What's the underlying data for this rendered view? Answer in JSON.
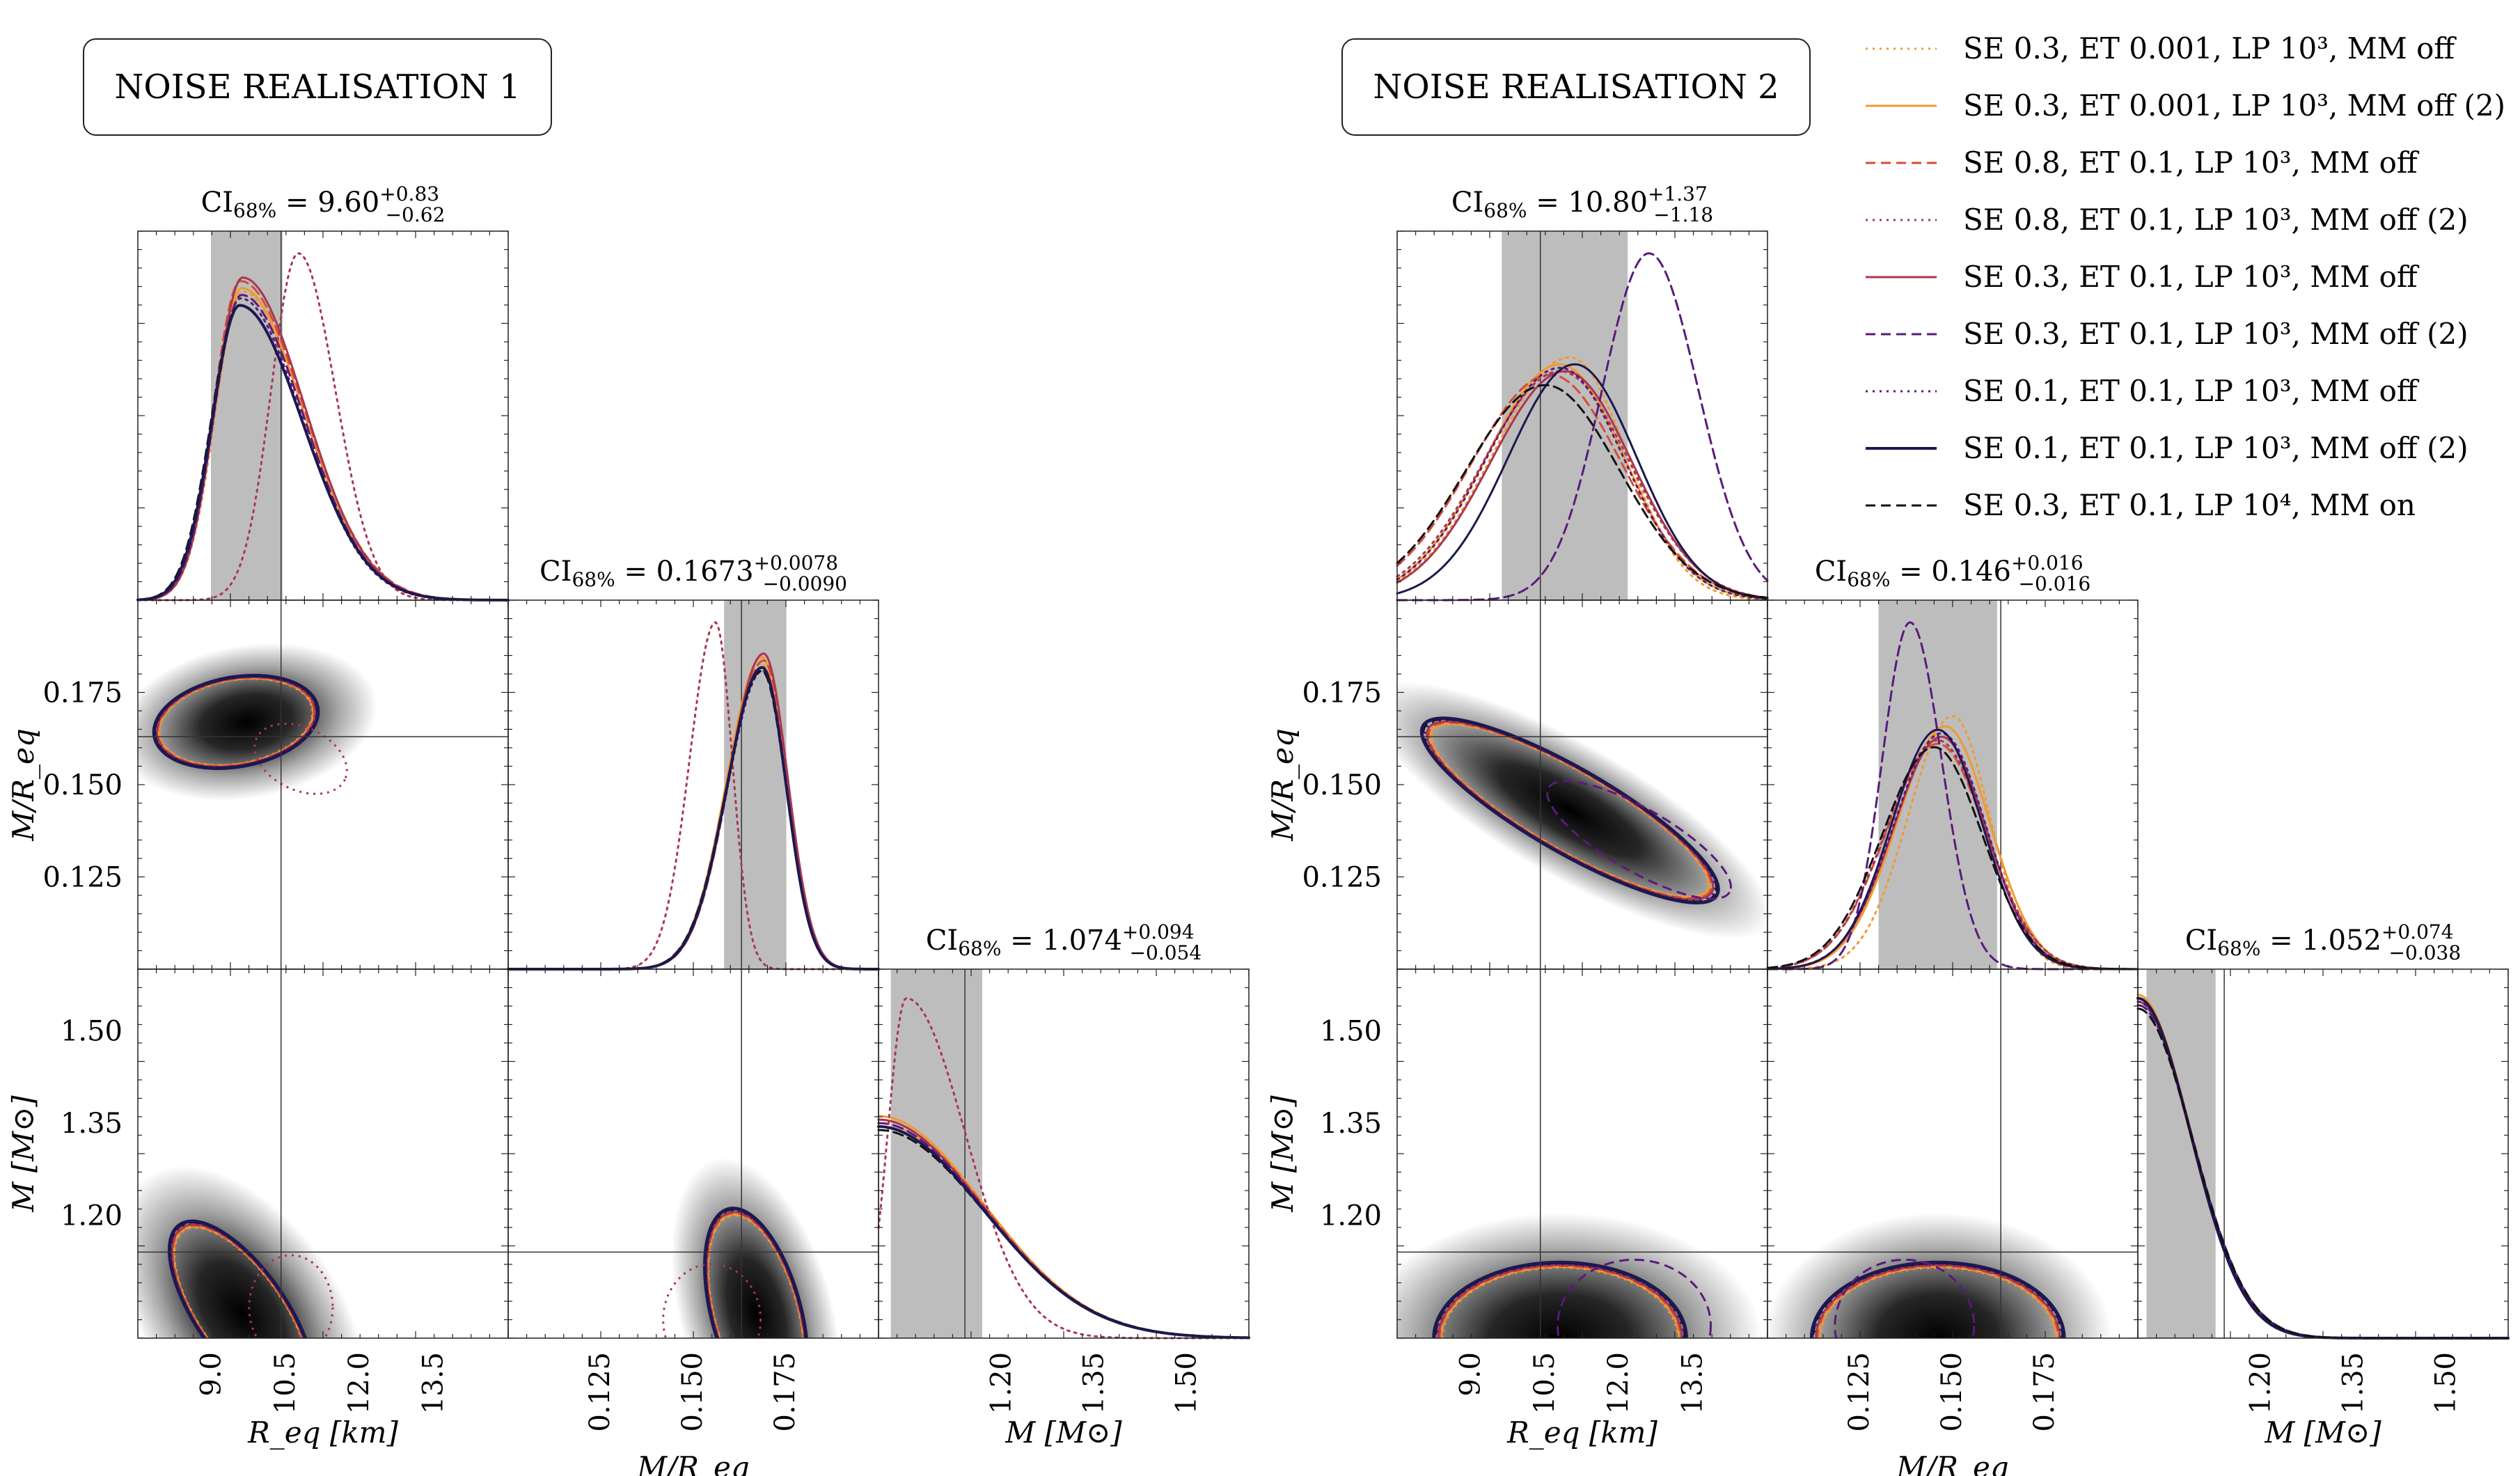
{
  "colors": {
    "orange": "#f2992e",
    "red": "#d64b3a",
    "crimson": "#a9374f",
    "purple": "#5a1a7c",
    "navy": "#1c1850",
    "black": "#111111",
    "band": "#bdbdbd"
  },
  "legend": [
    {
      "text": "SE 0.3, ET 0.001, LP 10³, MM off",
      "color": "orange",
      "dash": "dot"
    },
    {
      "text": "SE 0.3, ET 0.001, LP 10³, MM off (2)",
      "color": "orange",
      "dash": "solid"
    },
    {
      "text": "SE 0.8, ET 0.1, LP 10³, MM off",
      "color": "red",
      "dash": "dash"
    },
    {
      "text": "SE 0.8, ET 0.1, LP 10³, MM off (2)",
      "color": "crimson",
      "dash": "dot"
    },
    {
      "text": "SE 0.3, ET 0.1, LP 10³, MM off",
      "color": "crimson",
      "dash": "solid"
    },
    {
      "text": "SE 0.3, ET 0.1, LP 10³, MM off (2)",
      "color": "purple",
      "dash": "dash"
    },
    {
      "text": "SE 0.1, ET 0.1, LP 10³, MM off",
      "color": "purple",
      "dash": "dot"
    },
    {
      "text": "SE 0.1, ET 0.1, LP 10³, MM off (2)",
      "color": "navy",
      "dash": "solid"
    },
    {
      "text": "SE 0.3, ET 0.1, LP 10⁴, MM on",
      "color": "black",
      "dash": "dash"
    }
  ],
  "chart_data": [
    {
      "type": "corner",
      "title": "NOISE REALISATION 1",
      "params": [
        {
          "name": "R_eq",
          "xlabel": "R_eq [km]",
          "range": [
            7.5,
            15.0
          ],
          "truth": 10.4,
          "ticks": [
            "9.0",
            "10.5",
            "12.0",
            "13.5"
          ],
          "tickvals": [
            9.0,
            10.5,
            12.0,
            13.5
          ],
          "ci": {
            "label": "CI",
            "sub": "68%",
            "center": "9.60",
            "plus": "+0.83",
            "minus": "−0.62"
          },
          "band": [
            8.98,
            10.43
          ]
        },
        {
          "name": "M/R_eq",
          "xlabel": "M/R_eq",
          "ylabel": "M/R_eq",
          "range": [
            0.1,
            0.2
          ],
          "truth": 0.163,
          "ticks": [
            "0.125",
            "0.150",
            "0.175"
          ],
          "tickvals": [
            0.125,
            0.15,
            0.175
          ],
          "ci": {
            "label": "CI",
            "sub": "68%",
            "center": "0.1673",
            "plus": "+0.0078",
            "minus": "−0.0090"
          },
          "band": [
            0.1583,
            0.1751
          ]
        },
        {
          "name": "M",
          "xlabel": "M [M⊙]",
          "ylabel": "M [M⊙]",
          "range": [
            1.0,
            1.6
          ],
          "truth": 1.14,
          "ticks": [
            "1.20",
            "1.35",
            "1.50"
          ],
          "tickvals": [
            1.2,
            1.35,
            1.5
          ],
          "ci": {
            "label": "CI",
            "sub": "68%",
            "center": "1.074",
            "plus": "+0.094",
            "minus": "−0.054"
          },
          "band": [
            1.02,
            1.168
          ]
        }
      ],
      "ylabel_ticks": {
        "M/R_eq": [
          "0.125",
          "0.150",
          "0.175"
        ],
        "M": [
          "1.20",
          "1.35",
          "1.50"
        ]
      }
    },
    {
      "type": "corner",
      "title": "NOISE REALISATION 2",
      "params": [
        {
          "name": "R_eq",
          "xlabel": "R_eq [km]",
          "range": [
            7.5,
            15.0
          ],
          "truth": 10.4,
          "ticks": [
            "9.0",
            "10.5",
            "12.0",
            "13.5"
          ],
          "tickvals": [
            9.0,
            10.5,
            12.0,
            13.5
          ],
          "ci": {
            "label": "CI",
            "sub": "68%",
            "center": "10.80",
            "plus": "+1.37",
            "minus": "−1.18"
          },
          "band": [
            9.62,
            12.17
          ]
        },
        {
          "name": "M/R_eq",
          "xlabel": "M/R_eq",
          "ylabel": "M/R_eq",
          "range": [
            0.1,
            0.2
          ],
          "truth": 0.163,
          "ticks": [
            "0.125",
            "0.150",
            "0.175"
          ],
          "tickvals": [
            0.125,
            0.15,
            0.175
          ],
          "ci": {
            "label": "CI",
            "sub": "68%",
            "center": "0.146",
            "plus": "+0.016",
            "minus": "−0.016"
          },
          "band": [
            0.13,
            0.162
          ]
        },
        {
          "name": "M",
          "xlabel": "M [M⊙]",
          "ylabel": "M [M⊙]",
          "range": [
            1.0,
            1.6
          ],
          "truth": 1.14,
          "ticks": [
            "1.20",
            "1.35",
            "1.50"
          ],
          "tickvals": [
            1.2,
            1.35,
            1.5
          ],
          "ci": {
            "label": "CI",
            "sub": "68%",
            "center": "1.052",
            "plus": "+0.074",
            "minus": "−0.038"
          },
          "band": [
            1.014,
            1.126
          ]
        }
      ]
    }
  ]
}
